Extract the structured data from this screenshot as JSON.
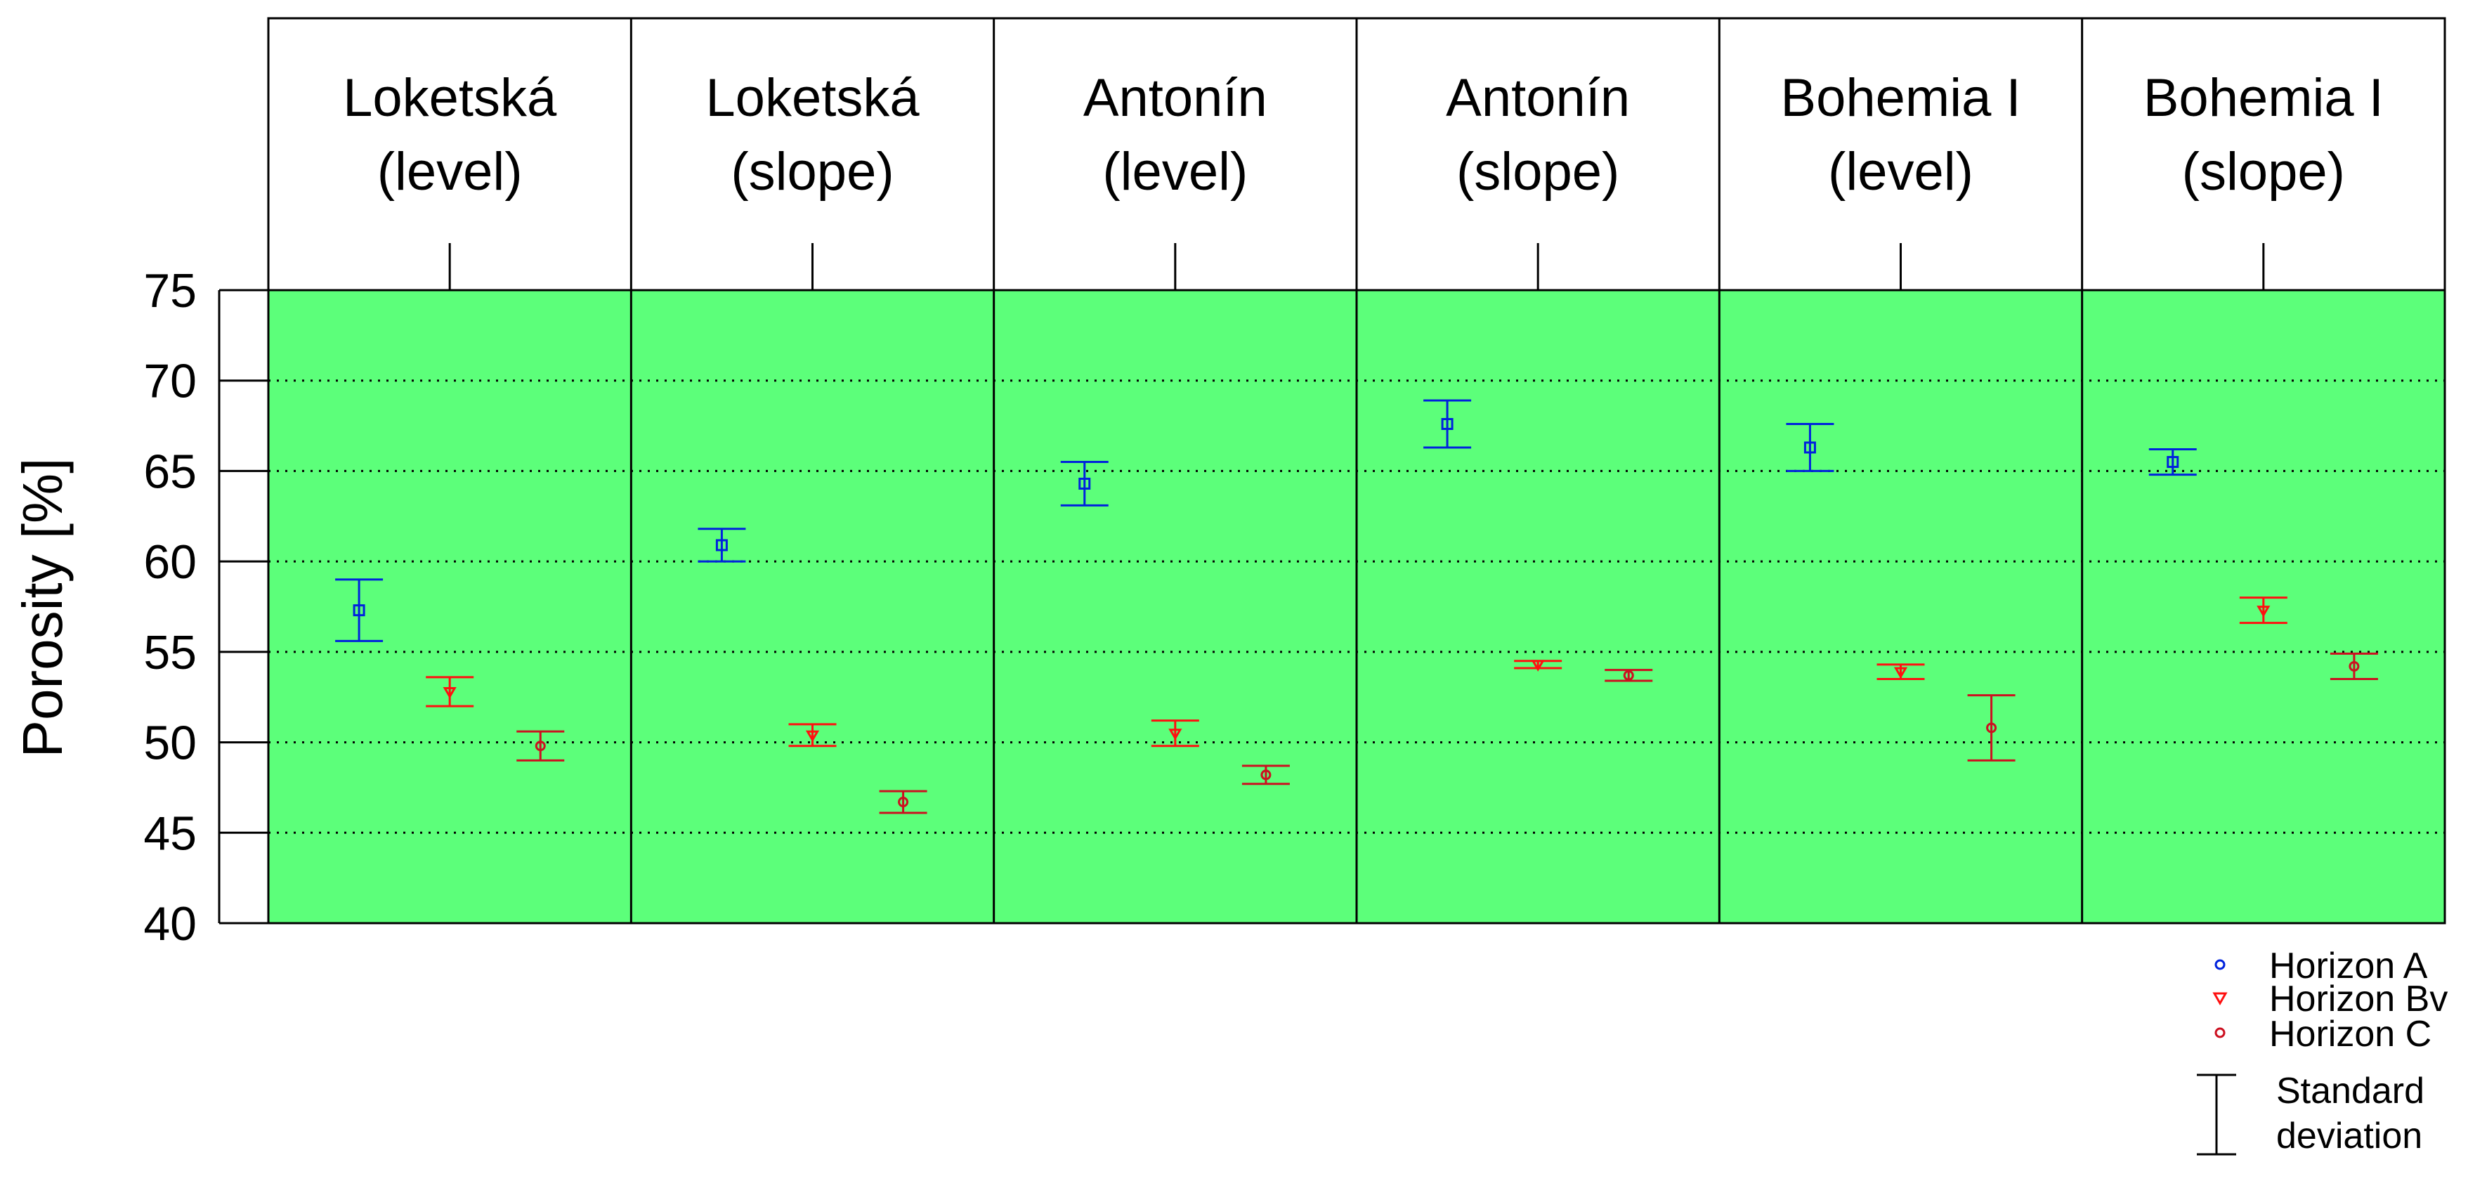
{
  "chart_data": {
    "type": "scatter",
    "ylabel": "Porosity [%]",
    "ylim": [
      40,
      75
    ],
    "yticks": [
      40,
      45,
      50,
      55,
      60,
      65,
      70,
      75
    ],
    "grid": "horizontal dotted",
    "plot_background": "#5cff7a",
    "panels": [
      {
        "line1": "Loketská",
        "line2": "(level)"
      },
      {
        "line1": "Loketská",
        "line2": "(slope)"
      },
      {
        "line1": "Antonín",
        "line2": "(level)"
      },
      {
        "line1": "Antonín",
        "line2": "(slope)"
      },
      {
        "line1": "Bohemia I",
        "line2": "(level)"
      },
      {
        "line1": "Bohemia I",
        "line2": "(slope)"
      }
    ],
    "series": [
      {
        "name": "Horizon A",
        "color": "#0022dd",
        "marker": "square",
        "values": [
          57.3,
          60.9,
          64.3,
          67.6,
          66.3,
          65.5
        ],
        "std": [
          1.7,
          0.9,
          1.2,
          1.3,
          1.3,
          0.7
        ]
      },
      {
        "name": "Horizon Bv",
        "color": "#ff1010",
        "marker": "triangle-down",
        "values": [
          52.8,
          50.4,
          50.5,
          54.3,
          53.9,
          57.3
        ],
        "std": [
          0.8,
          0.6,
          0.7,
          0.2,
          0.4,
          0.7
        ]
      },
      {
        "name": "Horizon C",
        "color": "#cc1020",
        "marker": "circle",
        "values": [
          49.8,
          46.7,
          48.2,
          53.7,
          50.8,
          54.2
        ],
        "std": [
          0.8,
          0.6,
          0.5,
          0.3,
          1.8,
          0.7
        ]
      }
    ],
    "legend_position": "bottom-right",
    "legend_extra": {
      "line1": "Standard",
      "line2": "deviation"
    }
  }
}
